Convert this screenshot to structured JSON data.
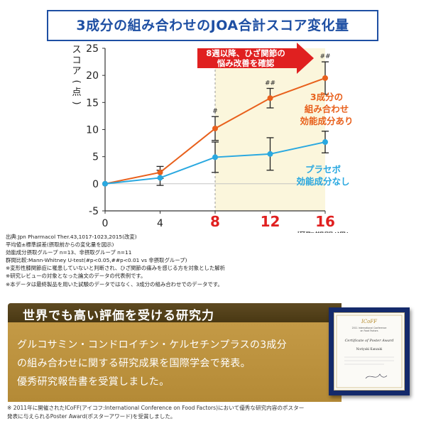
{
  "title": "3成分の組み合わせのJOA合計スコア変化量",
  "chart_data": {
    "type": "line",
    "ylabel": "スコア(点)",
    "xlabel": "摂取期間(週)",
    "ylim": [
      -5,
      25
    ],
    "yticks": [
      "25",
      "20",
      "15",
      "10",
      "5",
      "0",
      "-5"
    ],
    "xticks": [
      {
        "label": "0",
        "highlight": false
      },
      {
        "label": "4",
        "highlight": false
      },
      {
        "label": "8",
        "highlight": true
      },
      {
        "label": "12",
        "highlight": true
      },
      {
        "label": "16",
        "highlight": true
      }
    ],
    "x": [
      0,
      4,
      8,
      12,
      16
    ],
    "series": [
      {
        "name_lines": [
          "3成分の",
          "組み合わせ",
          "効能成分あり"
        ],
        "color": "#e8601c",
        "values": [
          0,
          2.1,
          10.2,
          15.8,
          19.5
        ],
        "errors": [
          0,
          1.1,
          2.2,
          1.8,
          3.0
        ],
        "markers": [
          "",
          "",
          "#",
          "##",
          "##"
        ]
      },
      {
        "name_lines": [
          "プラセボ",
          "効能成分なし"
        ],
        "color": "#29a8e0",
        "values": [
          0,
          1.1,
          4.9,
          5.5,
          7.7
        ],
        "errors": [
          0,
          1.4,
          2.8,
          3.0,
          2.0
        ],
        "markers": [
          "",
          "",
          "",
          "",
          ""
        ]
      }
    ],
    "highlight_band": [
      8,
      16
    ],
    "annotation": [
      "8週以降、ひざ関節の",
      "悩み改善を確認"
    ],
    "colors": {
      "arrow": "#e02020",
      "band": "#fbf6dc"
    }
  },
  "notes": [
    "出典:Jpn Pharmacol Ther.43,1017-1023,2015(改変)",
    "平均値±標準誤差(摂取前からの変化量を図示)",
    "効能成分摂取グループ n=13、非摂取グループ n=11",
    "群間比較:Mann-Whitney U-test(#p<0.05,##p<0.01 vs 非摂取グループ)",
    "※変形性膝関節症に罹患していないと判断され、ひざ関節の痛みを感じる方を対象とした解析",
    "※研究レビューの対象となった論文のデータの代表例です。",
    "※本データは最終製品を用いた試験のデータではなく、3成分の組み合わせでのデータです。"
  ],
  "award": {
    "heading": "世界でも高い評価を受ける研究力",
    "lines": [
      "グルコサミン・コンドロイチン・ケルセチンプラスの3成分",
      "の組み合わせに関する研究成果を国際学会で発表。",
      "優秀研究報告書を受賞しました。"
    ],
    "certificate": {
      "line1": "2011 International Conference",
      "line2": "on Food Factors",
      "title": "Certificate of Poster Award",
      "name": "Noriyuki Kanzaki"
    }
  },
  "footnote": [
    "※ 2011年に開催されたICoFF(アイコフ:International Conference on Food Factors)において優秀な研究内容のポスター",
    "発表に与えられるPoster Award(ポスターアワード)を受賞しました。"
  ]
}
